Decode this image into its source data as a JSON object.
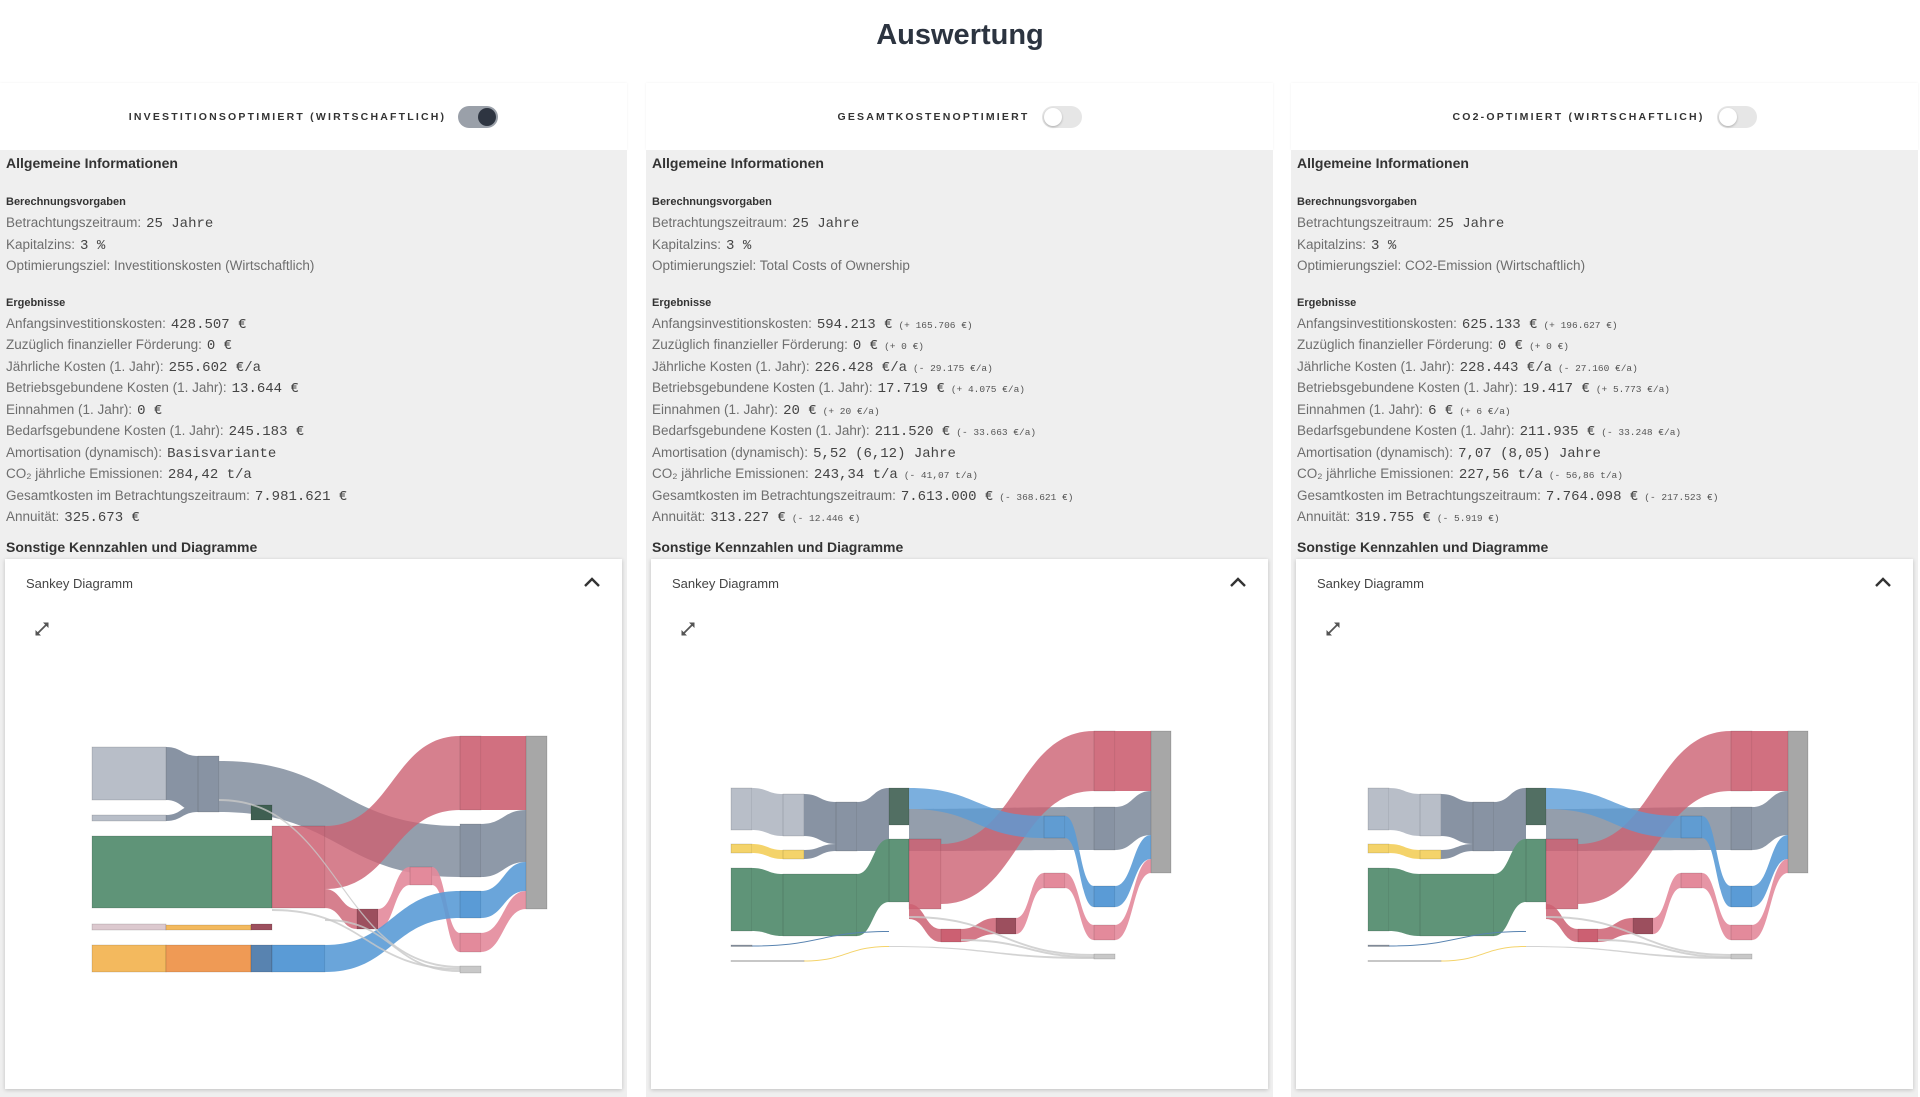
{
  "page_title": "Auswertung",
  "colors": {
    "lightgray": "#b8bec8",
    "graublue": "#8893a3",
    "green": "#5f9478",
    "darkgreen": "#3f5f52",
    "red": "#cc6072",
    "darkred": "#9c4f5e",
    "pink": "#e38a9b",
    "blue": "#5a9bd6",
    "darkblue": "#5883b0",
    "orange": "#ef9a55",
    "yelloworange": "#f3b95e",
    "yellow": "#f4d36a",
    "palepink": "#dcc9cf",
    "final": "#a7a7a7",
    "thin": "#c8c8c8"
  },
  "panels": [
    {
      "toggle_label": "INVESTITIONSOPTIMIERT (WIRTSCHAFTLICH)",
      "toggle_on": true,
      "info_heading": "Allgemeine Informationen",
      "calc_heading": "Berechnungsvorgaben",
      "calc": [
        {
          "label": "Betrachtungszeitraum:",
          "value": "25 Jahre"
        },
        {
          "label": "Kapitalzins:",
          "value": "3 %"
        },
        {
          "label": "Optimierungsziel: Investitionskosten (Wirtschaftlich)",
          "value": ""
        }
      ],
      "results_heading": "Ergebnisse",
      "results": [
        {
          "label": "Anfangsinvestitionskosten:",
          "value": "428.507 €",
          "delta": ""
        },
        {
          "label": "Zuzüglich finanzieller Förderung:",
          "value": "0 €",
          "delta": ""
        },
        {
          "label": "Jährliche Kosten (1. Jahr):",
          "value": "255.602 €/a",
          "delta": ""
        },
        {
          "label": "Betriebsgebundene Kosten (1. Jahr):",
          "value": "13.644 €",
          "delta": ""
        },
        {
          "label": "Einnahmen (1. Jahr):",
          "value": "0 €",
          "delta": ""
        },
        {
          "label": "Bedarfsgebundene Kosten (1. Jahr):",
          "value": "245.183 €",
          "delta": ""
        },
        {
          "label": "Amortisation (dynamisch):",
          "value": "Basisvariante",
          "delta": ""
        },
        {
          "label": "CO₂ jährliche Emissionen:",
          "value": "284,42 t/a",
          "delta": ""
        },
        {
          "label": "Gesamtkosten im Betrachtungszeitraum:",
          "value": "7.981.621 €",
          "delta": ""
        },
        {
          "label": "Annuität:",
          "value": "325.673 €",
          "delta": ""
        }
      ],
      "other_heading": "Sonstige Kennzahlen und Diagramme",
      "card_title": "Sankey Diagramm"
    },
    {
      "toggle_label": "GESAMTKOSTENOPTIMIERT",
      "toggle_on": false,
      "info_heading": "Allgemeine Informationen",
      "calc_heading": "Berechnungsvorgaben",
      "calc": [
        {
          "label": "Betrachtungszeitraum:",
          "value": "25 Jahre"
        },
        {
          "label": "Kapitalzins:",
          "value": "3 %"
        },
        {
          "label": "Optimierungsziel: Total Costs of Ownership",
          "value": ""
        }
      ],
      "results_heading": "Ergebnisse",
      "results": [
        {
          "label": "Anfangsinvestitionskosten:",
          "value": "594.213 €",
          "delta": "(+ 165.706 €)"
        },
        {
          "label": "Zuzüglich finanzieller Förderung:",
          "value": "0 €",
          "delta": "(+ 0 €)"
        },
        {
          "label": "Jährliche Kosten (1. Jahr):",
          "value": "226.428 €/a",
          "delta": "(- 29.175 €/a)"
        },
        {
          "label": "Betriebsgebundene Kosten (1. Jahr):",
          "value": "17.719 €",
          "delta": "(+ 4.075 €/a)"
        },
        {
          "label": "Einnahmen (1. Jahr):",
          "value": "20 €",
          "delta": "(+ 20 €/a)"
        },
        {
          "label": "Bedarfsgebundene Kosten (1. Jahr):",
          "value": "211.520 €",
          "delta": "(- 33.663 €/a)"
        },
        {
          "label": "Amortisation (dynamisch):",
          "value": "5,52 (6,12) Jahre",
          "delta": ""
        },
        {
          "label": "CO₂ jährliche Emissionen:",
          "value": "243,34 t/a",
          "delta": "(- 41,07 t/a)"
        },
        {
          "label": "Gesamtkosten im Betrachtungszeitraum:",
          "value": "7.613.000 €",
          "delta": "(- 368.621 €)"
        },
        {
          "label": "Annuität:",
          "value": "313.227 €",
          "delta": "(- 12.446 €)"
        }
      ],
      "other_heading": "Sonstige Kennzahlen und Diagramme",
      "card_title": "Sankey Diagramm"
    },
    {
      "toggle_label": "CO2-OPTIMIERT (WIRTSCHAFTLICH)",
      "toggle_on": false,
      "info_heading": "Allgemeine Informationen",
      "calc_heading": "Berechnungsvorgaben",
      "calc": [
        {
          "label": "Betrachtungszeitraum:",
          "value": "25 Jahre"
        },
        {
          "label": "Kapitalzins:",
          "value": "3 %"
        },
        {
          "label": "Optimierungsziel: CO2-Emission (Wirtschaftlich)",
          "value": ""
        }
      ],
      "results_heading": "Ergebnisse",
      "results": [
        {
          "label": "Anfangsinvestitionskosten:",
          "value": "625.133 €",
          "delta": "(+ 196.627 €)"
        },
        {
          "label": "Zuzüglich finanzieller Förderung:",
          "value": "0 €",
          "delta": "(+ 0 €)"
        },
        {
          "label": "Jährliche Kosten (1. Jahr):",
          "value": "228.443 €/a",
          "delta": "(- 27.160 €/a)"
        },
        {
          "label": "Betriebsgebundene Kosten (1. Jahr):",
          "value": "19.417 €",
          "delta": "(+ 5.773 €/a)"
        },
        {
          "label": "Einnahmen (1. Jahr):",
          "value": "6 €",
          "delta": "(+ 6 €/a)"
        },
        {
          "label": "Bedarfsgebundene Kosten (1. Jahr):",
          "value": "211.935 €",
          "delta": "(- 33.248 €/a)"
        },
        {
          "label": "Amortisation (dynamisch):",
          "value": "7,07 (8,05) Jahre",
          "delta": ""
        },
        {
          "label": "CO₂ jährliche Emissionen:",
          "value": "227,56 t/a",
          "delta": "(- 56,86 t/a)"
        },
        {
          "label": "Gesamtkosten im Betrachtungszeitraum:",
          "value": "7.764.098 €",
          "delta": "(- 217.523 €)"
        },
        {
          "label": "Annuität:",
          "value": "319.755 €",
          "delta": "(- 5.919 €)"
        }
      ],
      "other_heading": "Sonstige Kennzahlen und Diagramme",
      "card_title": "Sankey Diagramm"
    }
  ]
}
